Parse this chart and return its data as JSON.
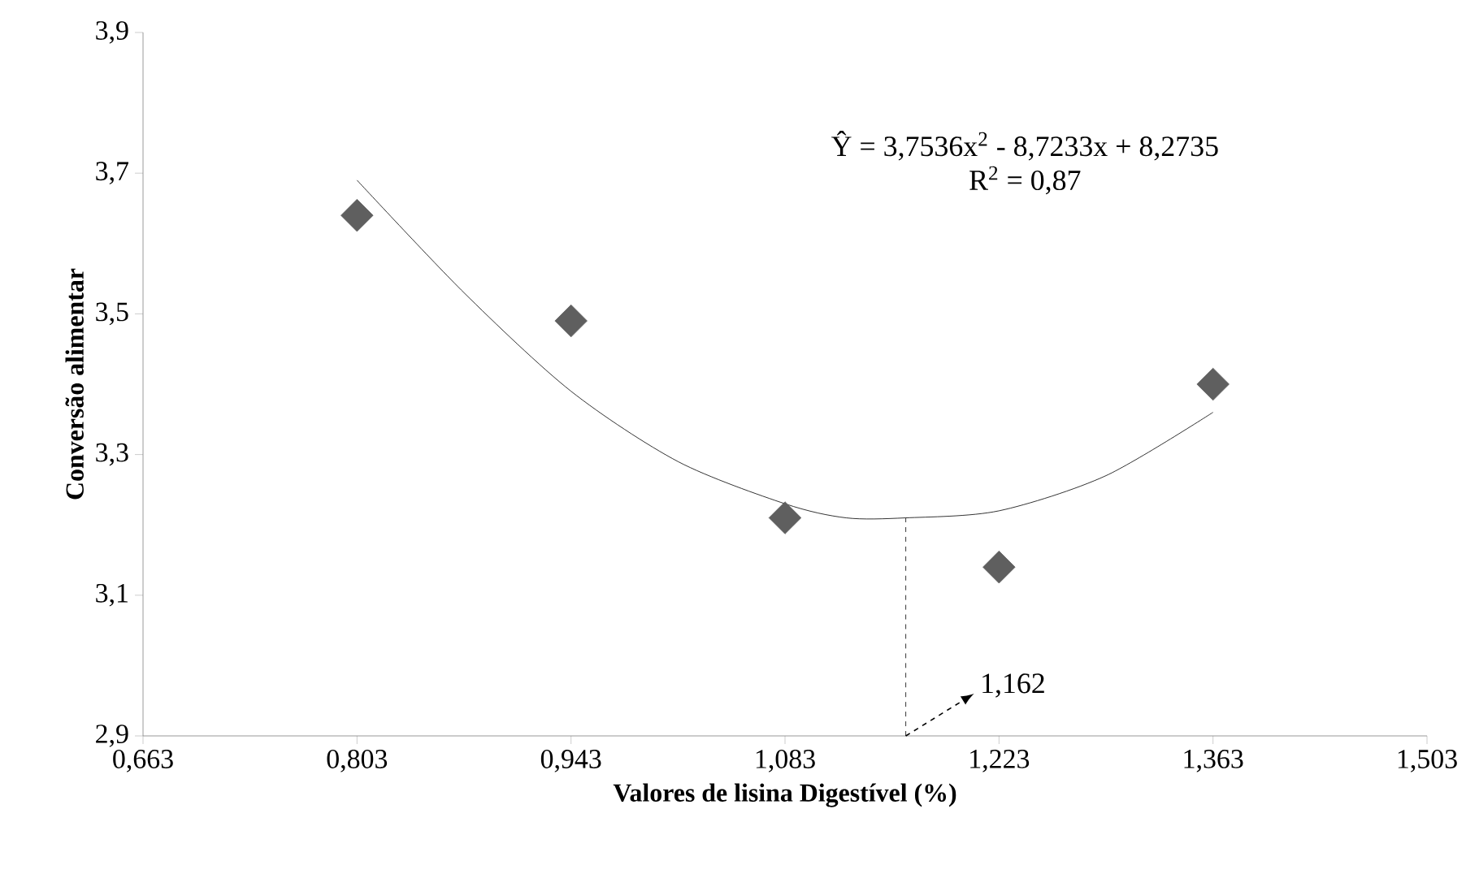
{
  "chart_data": {
    "type": "scatter",
    "xlabel": "Valores de lisina Digestível (%)",
    "ylabel": "Conversão alimentar",
    "xlim": [
      0.663,
      1.503
    ],
    "xticks": [
      {
        "value": 0.663,
        "label": "0,663"
      },
      {
        "value": 0.803,
        "label": "0,803"
      },
      {
        "value": 0.943,
        "label": "0,943"
      },
      {
        "value": 1.083,
        "label": "1,083"
      },
      {
        "value": 1.223,
        "label": "1,223"
      },
      {
        "value": 1.363,
        "label": "1,363"
      },
      {
        "value": 1.503,
        "label": "1,503"
      }
    ],
    "ylim": [
      2.9,
      3.9
    ],
    "yticks": [
      {
        "value": 2.9,
        "label": "2,9"
      },
      {
        "value": 3.1,
        "label": "3,1"
      },
      {
        "value": 3.3,
        "label": "3,3"
      },
      {
        "value": 3.5,
        "label": "3,5"
      },
      {
        "value": 3.7,
        "label": "3,7"
      },
      {
        "value": 3.9,
        "label": "3,9"
      }
    ],
    "x": [
      0.803,
      0.943,
      1.083,
      1.223,
      1.363
    ],
    "series": [
      {
        "marker": "diamond",
        "color": "#5f5f5f",
        "values": [
          3.64,
          3.49,
          3.21,
          3.14,
          3.4
        ]
      },
      {
        "type": "line",
        "color": "#000000",
        "x": [
          0.803,
          0.873,
          0.943,
          1.013,
          1.083,
          1.123,
          1.162,
          1.223,
          1.293,
          1.363
        ],
        "values": [
          3.69,
          3.53,
          3.39,
          3.29,
          3.23,
          3.21,
          3.21,
          3.22,
          3.27,
          3.36
        ]
      },
      {
        "type": "line",
        "line_style": "dashed",
        "color": "#000000",
        "x": [
          1.162,
          1.162
        ],
        "values": [
          2.9,
          3.21
        ]
      }
    ],
    "annotations": [
      "Ŷ = 3,7536x$^{2}$ - 8,7233x + 8,2735",
      "R$^{2}$ = 0,87",
      {
        "text": "1,162",
        "x": 1.162,
        "y": 2.9
      }
    ]
  }
}
